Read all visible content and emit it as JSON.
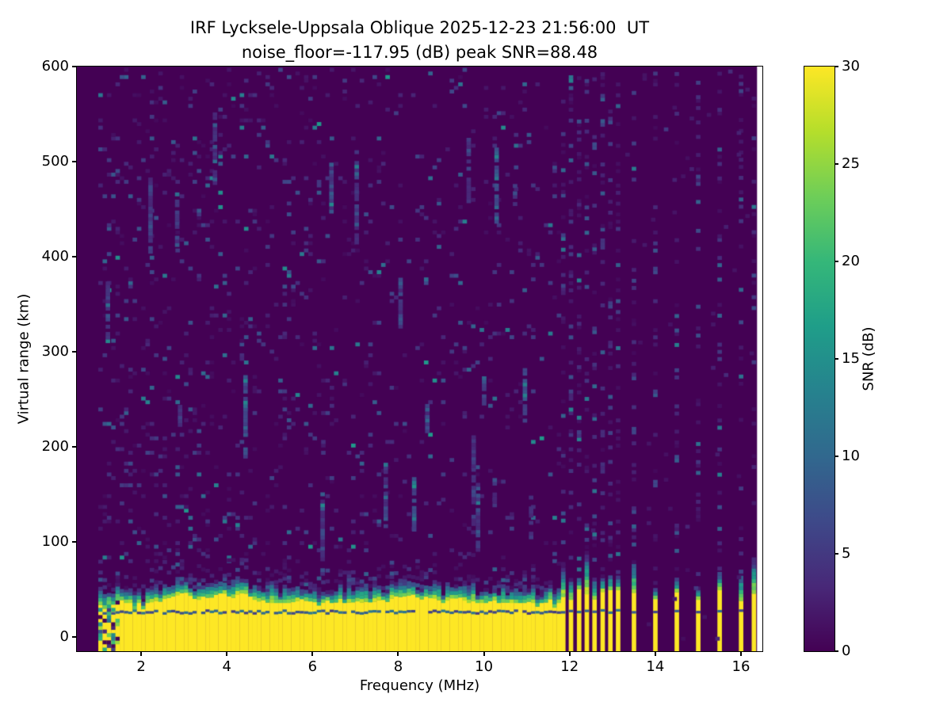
{
  "figure": {
    "title_line1": "IRF Lycksele-Uppsala Oblique 2025-12-23 21:56:00  UT",
    "title_line2": "noise_floor=-117.95 (dB) peak SNR=88.48"
  },
  "x_axis": {
    "label": "Frequency (MHz)",
    "min": 0.5,
    "max": 16.5,
    "ticks": [
      2,
      4,
      6,
      8,
      10,
      12,
      14,
      16
    ]
  },
  "y_axis": {
    "label": "Virtual range (km)",
    "min": -15,
    "max": 600,
    "ticks": [
      0,
      100,
      200,
      300,
      400,
      500,
      600
    ]
  },
  "colorbar": {
    "label": "SNR (dB)",
    "min": 0,
    "max": 30,
    "ticks": [
      0,
      5,
      10,
      15,
      20,
      25,
      30
    ]
  },
  "chart_data": {
    "type": "heatmap",
    "title": "IRF Lycksele-Uppsala Oblique 2025-12-23 21:56:00  UT",
    "subtitle": "noise_floor=-117.95 (dB) peak SNR=88.48",
    "station": "IRF Lycksele-Uppsala Oblique",
    "timestamp_ut": "2025-12-23 21:56:00",
    "noise_floor_db": -117.95,
    "peak_snr_db": 88.48,
    "xlabel": "Frequency (MHz)",
    "ylabel": "Virtual range (km)",
    "xlim": [
      0.5,
      16.5
    ],
    "ylim": [
      -15,
      600
    ],
    "colorbar_label": "SNR (dB)",
    "clim": [
      0,
      30
    ],
    "colormap": "viridis",
    "colormap_colors": [
      "#440154",
      "#482878",
      "#3e4989",
      "#31688e",
      "#26828e",
      "#1f9e89",
      "#35b779",
      "#6ece58",
      "#b5de2b",
      "#fde725"
    ],
    "sweep_start_mhz": 1.0,
    "data_end_mhz": 16.38,
    "ground_clutter_band": {
      "freq_start_mhz": 1.0,
      "freq_end_mhz": 11.72,
      "top_km_mean": 46,
      "top_km_min": 36,
      "top_km_max": 58,
      "fringe_km": [
        6,
        20
      ],
      "dark_line_km": 28,
      "snr_db": 30
    },
    "tx_stripe_freqs_mhz": [
      11.85,
      12.03,
      12.22,
      12.4,
      12.58,
      12.77,
      12.95,
      13.13,
      13.5,
      14.0,
      14.5,
      15.0,
      15.5,
      16.0,
      16.3
    ],
    "stripe_top_km": [
      38,
      52
    ],
    "background_speckle": {
      "density_at_1mhz": 0.115,
      "density_at_11mhz": 0.05,
      "stripe_column_density": 0.27,
      "off_column_density": 0.012,
      "snr_db_typical": [
        1,
        12
      ],
      "snr_db_max": 18
    },
    "seed": 20251223
  }
}
